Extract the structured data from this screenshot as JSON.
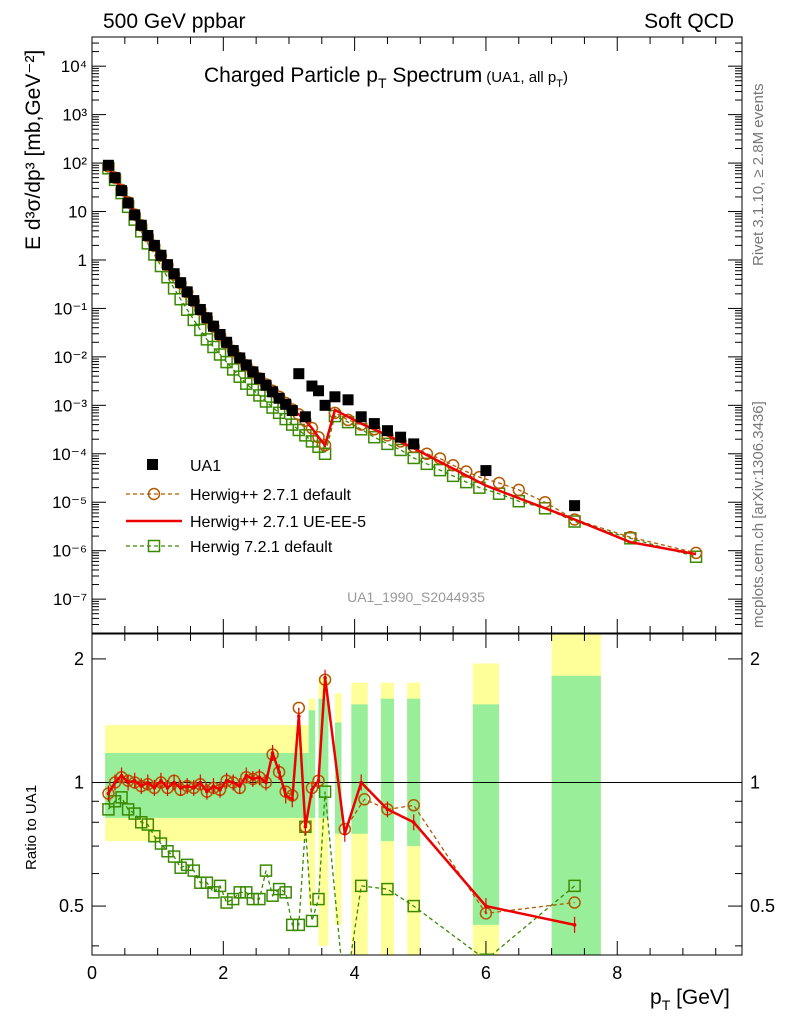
{
  "header": {
    "left": "500 GeV ppbar",
    "right": "Soft QCD"
  },
  "side": {
    "rivet": "Rivet 3.1.10, ≥ 2.8M events",
    "mcplots": "mcplots.cern.ch [arXiv:1306.3436]"
  },
  "main": {
    "title": "Charged Particle p",
    "title_sub": "T",
    "title_suffix": " Spectrum",
    "title_note": "(UA1, all p",
    "title_note_sub": "T",
    "title_note_end": ")",
    "ylabel": "E d³σ/dp³ [mb,GeV⁻²]",
    "watermark": "UA1_1990_S2044935"
  },
  "ratio": {
    "ylabel": "Ratio to UA1"
  },
  "xaxis": {
    "label": "p",
    "label_sub": "T",
    "label_unit": " [GeV]"
  },
  "legend": {
    "entries": [
      "UA1",
      "Herwig++ 2.7.1 default",
      "Herwig++ 2.7.1 UE-EE-5",
      "Herwig 7.2.1 default"
    ]
  },
  "colors": {
    "data": "#000000",
    "herwig_default": "#b35a00",
    "herwig_ueee5": "#ee0000",
    "herwig7": "#3a8a00",
    "band_green": "#99ee99",
    "band_yellow": "#ffff99"
  },
  "chart_data": [
    {
      "type": "scatter",
      "panel": "spectrum",
      "log_y": true,
      "xlim": [
        0,
        9.9
      ],
      "ylim": [
        2e-08,
        40000
      ],
      "x_ticks": [
        0,
        2,
        4,
        6,
        8
      ],
      "y_ticks": [
        "10⁻⁷",
        "10⁻⁶",
        "10⁻⁵",
        "10⁻⁴",
        "10⁻³",
        "10⁻²",
        "10⁻¹",
        "1",
        "10",
        "10²",
        "10³",
        "10⁴"
      ],
      "series": [
        {
          "name": "UA1",
          "x": [
            0.25,
            0.35,
            0.45,
            0.55,
            0.65,
            0.75,
            0.85,
            0.95,
            1.05,
            1.15,
            1.25,
            1.35,
            1.45,
            1.55,
            1.65,
            1.75,
            1.85,
            1.95,
            2.05,
            2.15,
            2.25,
            2.35,
            2.45,
            2.55,
            2.65,
            2.75,
            2.85,
            2.95,
            3.05,
            3.15,
            3.25,
            3.35,
            3.45,
            3.55,
            3.7,
            3.9,
            4.1,
            4.3,
            4.5,
            4.7,
            4.9,
            6.0,
            7.35
          ],
          "y": [
            90,
            50,
            27,
            15,
            8.5,
            5.2,
            3.2,
            2.0,
            1.25,
            0.8,
            0.52,
            0.34,
            0.22,
            0.145,
            0.095,
            0.064,
            0.043,
            0.029,
            0.02,
            0.0135,
            0.0095,
            0.0068,
            0.0049,
            0.0036,
            0.0026,
            0.0019,
            0.0014,
            0.00105,
            0.00078,
            0.0045,
            0.00058,
            0.0025,
            0.002,
            0.001,
            0.0015,
            0.0013,
            0.00058,
            0.00042,
            0.0003,
            0.00022,
            0.00016,
            4.5e-05,
            8.5e-06
          ]
        },
        {
          "name": "Herwig++ 2.7.1 default",
          "x": [
            0.25,
            0.35,
            0.45,
            0.55,
            0.65,
            0.75,
            0.85,
            0.95,
            1.05,
            1.15,
            1.25,
            1.35,
            1.45,
            1.55,
            1.65,
            1.75,
            1.85,
            1.95,
            2.05,
            2.15,
            2.25,
            2.35,
            2.45,
            2.55,
            2.65,
            2.75,
            2.85,
            2.95,
            3.05,
            3.15,
            3.25,
            3.35,
            3.45,
            3.55,
            3.7,
            3.9,
            4.1,
            4.3,
            4.5,
            4.7,
            4.9,
            5.1,
            5.3,
            5.5,
            5.7,
            5.9,
            6.2,
            6.5,
            6.9,
            7.35,
            8.2,
            9.2
          ],
          "y": [
            85,
            50,
            28,
            15.5,
            8.7,
            5.2,
            3.1,
            1.95,
            1.22,
            0.78,
            0.5,
            0.33,
            0.215,
            0.14,
            0.093,
            0.063,
            0.042,
            0.028,
            0.0195,
            0.0133,
            0.0094,
            0.0067,
            0.0049,
            0.0036,
            0.0027,
            0.002,
            0.0015,
            0.00112,
            0.00082,
            0.00065,
            0.00048,
            0.00034,
            0.00022,
            0.00015,
            0.0007,
            0.0005,
            0.0004,
            0.00032,
            0.00024,
            0.00018,
            0.00014,
            0.0001,
            8e-05,
            5.8e-05,
            4.3e-05,
            3.3e-05,
            2.5e-05,
            1.8e-05,
            1e-05,
            4.4e-06,
            1.9e-06,
            9e-07
          ]
        },
        {
          "name": "Herwig++ 2.7.1 UE-EE-5",
          "x": [
            0.25,
            0.35,
            0.45,
            0.55,
            0.65,
            0.75,
            0.85,
            0.95,
            1.05,
            1.15,
            1.25,
            1.35,
            1.45,
            1.55,
            1.65,
            1.75,
            1.85,
            1.95,
            2.05,
            2.15,
            2.25,
            2.35,
            2.45,
            2.55,
            2.65,
            2.75,
            2.85,
            2.95,
            3.05,
            3.15,
            3.25,
            3.35,
            3.45,
            3.55,
            3.7,
            3.9,
            4.1,
            4.5,
            4.9,
            6.0,
            7.35,
            8.2,
            9.2
          ],
          "y": [
            85,
            50,
            28,
            15.5,
            8.7,
            5.2,
            3.1,
            1.95,
            1.22,
            0.78,
            0.5,
            0.33,
            0.215,
            0.14,
            0.093,
            0.063,
            0.042,
            0.028,
            0.0195,
            0.0133,
            0.0094,
            0.0067,
            0.0049,
            0.0036,
            0.0027,
            0.002,
            0.0015,
            0.00112,
            0.00082,
            0.00065,
            0.00048,
            0.00034,
            0.00022,
            0.00015,
            0.0008,
            0.00058,
            0.00042,
            0.00024,
            0.00013,
            2.2e-05,
            4.4e-06,
            1.5e-06,
            8.5e-07
          ]
        },
        {
          "name": "Herwig 7.2.1 default",
          "x": [
            0.25,
            0.35,
            0.45,
            0.55,
            0.65,
            0.75,
            0.85,
            0.95,
            1.05,
            1.15,
            1.25,
            1.35,
            1.45,
            1.55,
            1.65,
            1.75,
            1.85,
            1.95,
            2.05,
            2.15,
            2.25,
            2.35,
            2.45,
            2.55,
            2.65,
            2.75,
            2.85,
            2.95,
            3.05,
            3.15,
            3.25,
            3.35,
            3.45,
            3.55,
            3.7,
            3.9,
            4.1,
            4.3,
            4.5,
            4.7,
            4.9,
            5.1,
            5.3,
            5.5,
            5.7,
            5.9,
            6.2,
            6.5,
            6.9,
            7.35,
            8.2,
            9.2
          ],
          "y": [
            78,
            45,
            24,
            12.5,
            6.8,
            3.9,
            2.2,
            1.3,
            0.75,
            0.44,
            0.26,
            0.155,
            0.094,
            0.058,
            0.036,
            0.023,
            0.016,
            0.0112,
            0.0078,
            0.0055,
            0.0039,
            0.0028,
            0.0021,
            0.0016,
            0.0012,
            0.0009,
            0.0007,
            0.00052,
            0.0004,
            0.00031,
            0.00024,
            0.00018,
            0.00014,
            0.0001,
            0.0006,
            0.00045,
            0.00032,
            0.00022,
            0.00016,
            0.00012,
            8.2e-05,
            6.2e-05,
            4.6e-05,
            3.5e-05,
            2.6e-05,
            2e-05,
            1.5e-05,
            1.05e-05,
            7.5e-06,
            4e-06,
            1.8e-06,
            7.5e-07
          ]
        }
      ]
    },
    {
      "type": "line",
      "panel": "ratio",
      "xlim": [
        0,
        9.9
      ],
      "ylim": [
        0.38,
        2.3
      ],
      "y_ticks": [
        0.5,
        1,
        2
      ],
      "x_ticks": [
        0,
        2,
        4,
        6,
        8
      ],
      "bands": {
        "x_edges": [
          [
            0.2,
            3.3
          ],
          [
            3.3,
            3.4
          ],
          [
            3.45,
            3.6
          ],
          [
            3.7,
            3.8
          ],
          [
            3.95,
            4.2
          ],
          [
            4.4,
            4.6
          ],
          [
            4.8,
            5.0
          ],
          [
            5.8,
            6.2
          ],
          [
            7.0,
            7.75
          ]
        ],
        "green": [
          [
            0.82,
            1.18
          ],
          [
            0.82,
            1.5
          ],
          [
            0.82,
            1.6
          ],
          [
            0.75,
            1.4
          ],
          [
            0.75,
            1.55
          ],
          [
            0.72,
            1.6
          ],
          [
            0.7,
            1.6
          ],
          [
            0.45,
            1.55
          ],
          [
            0.3,
            1.82
          ]
        ],
        "yellow": [
          [
            0.72,
            1.38
          ],
          [
            0.5,
            1.6
          ],
          [
            0.4,
            1.8
          ],
          [
            0.45,
            1.65
          ],
          [
            0.38,
            1.75
          ],
          [
            0.38,
            1.75
          ],
          [
            0.38,
            1.75
          ],
          [
            0.38,
            1.95
          ],
          [
            0.38,
            2.5
          ]
        ]
      },
      "series": [
        {
          "name": "Herwig++ 2.7.1 default",
          "x": [
            0.25,
            0.35,
            0.45,
            0.55,
            0.65,
            0.75,
            0.85,
            0.95,
            1.05,
            1.15,
            1.25,
            1.35,
            1.45,
            1.55,
            1.65,
            1.75,
            1.85,
            1.95,
            2.05,
            2.15,
            2.25,
            2.35,
            2.45,
            2.55,
            2.65,
            2.75,
            2.85,
            2.95,
            3.05,
            3.15,
            3.25,
            3.35,
            3.45,
            3.55,
            3.85,
            4.15,
            4.5,
            4.9,
            6.0,
            7.35
          ],
          "y": [
            0.94,
            1.0,
            1.03,
            1.01,
            1.0,
            0.98,
            0.99,
            0.97,
            1.0,
            0.97,
            1.01,
            0.96,
            0.98,
            0.97,
            0.99,
            0.95,
            0.97,
            0.96,
            1.01,
            1.0,
            0.97,
            1.03,
            1.02,
            1.03,
            1.0,
            1.17,
            1.06,
            0.95,
            0.93,
            1.52,
            0.78,
            0.97,
            1.01,
            1.78,
            0.77,
            0.91,
            0.86,
            0.88,
            0.48,
            0.51
          ]
        },
        {
          "name": "Herwig++ 2.7.1 UE-EE-5",
          "x": [
            0.25,
            0.35,
            0.45,
            0.55,
            0.65,
            0.75,
            0.85,
            0.95,
            1.05,
            1.15,
            1.25,
            1.35,
            1.45,
            1.55,
            1.65,
            1.75,
            1.85,
            1.95,
            2.05,
            2.15,
            2.25,
            2.35,
            2.45,
            2.55,
            2.65,
            2.75,
            2.85,
            2.95,
            3.05,
            3.15,
            3.25,
            3.35,
            3.45,
            3.55,
            3.85,
            4.1,
            4.5,
            4.9,
            6.0,
            7.35
          ],
          "y": [
            0.94,
            1.0,
            1.04,
            1.0,
            1.01,
            0.98,
            1.0,
            0.97,
            1.01,
            0.97,
            1.0,
            0.97,
            0.98,
            0.97,
            1.0,
            0.95,
            0.98,
            0.96,
            1.01,
            1.0,
            0.98,
            1.04,
            1.02,
            1.03,
            1.0,
            1.18,
            1.06,
            0.93,
            0.91,
            1.45,
            0.78,
            0.96,
            1.01,
            1.8,
            0.75,
            1.0,
            0.86,
            0.8,
            0.5,
            0.45
          ]
        },
        {
          "name": "Herwig 7.2.1 default",
          "x": [
            0.25,
            0.35,
            0.45,
            0.55,
            0.65,
            0.75,
            0.85,
            0.95,
            1.05,
            1.15,
            1.25,
            1.35,
            1.45,
            1.55,
            1.65,
            1.75,
            1.85,
            1.95,
            2.05,
            2.15,
            2.25,
            2.35,
            2.45,
            2.55,
            2.65,
            2.75,
            2.85,
            2.95,
            3.05,
            3.15,
            3.25,
            3.35,
            3.45,
            3.55,
            3.85,
            4.1,
            4.5,
            4.9,
            6.0,
            7.35
          ],
          "y": [
            0.86,
            0.9,
            0.92,
            0.86,
            0.84,
            0.8,
            0.79,
            0.74,
            0.71,
            0.68,
            0.66,
            0.62,
            0.63,
            0.61,
            0.57,
            0.57,
            0.54,
            0.56,
            0.51,
            0.52,
            0.54,
            0.54,
            0.52,
            0.52,
            0.61,
            0.53,
            0.55,
            0.54,
            0.45,
            0.45,
            0.78,
            0.46,
            0.52,
            0.95,
            0.3,
            0.56,
            0.55,
            0.5,
            0.37,
            0.56
          ]
        }
      ]
    }
  ]
}
